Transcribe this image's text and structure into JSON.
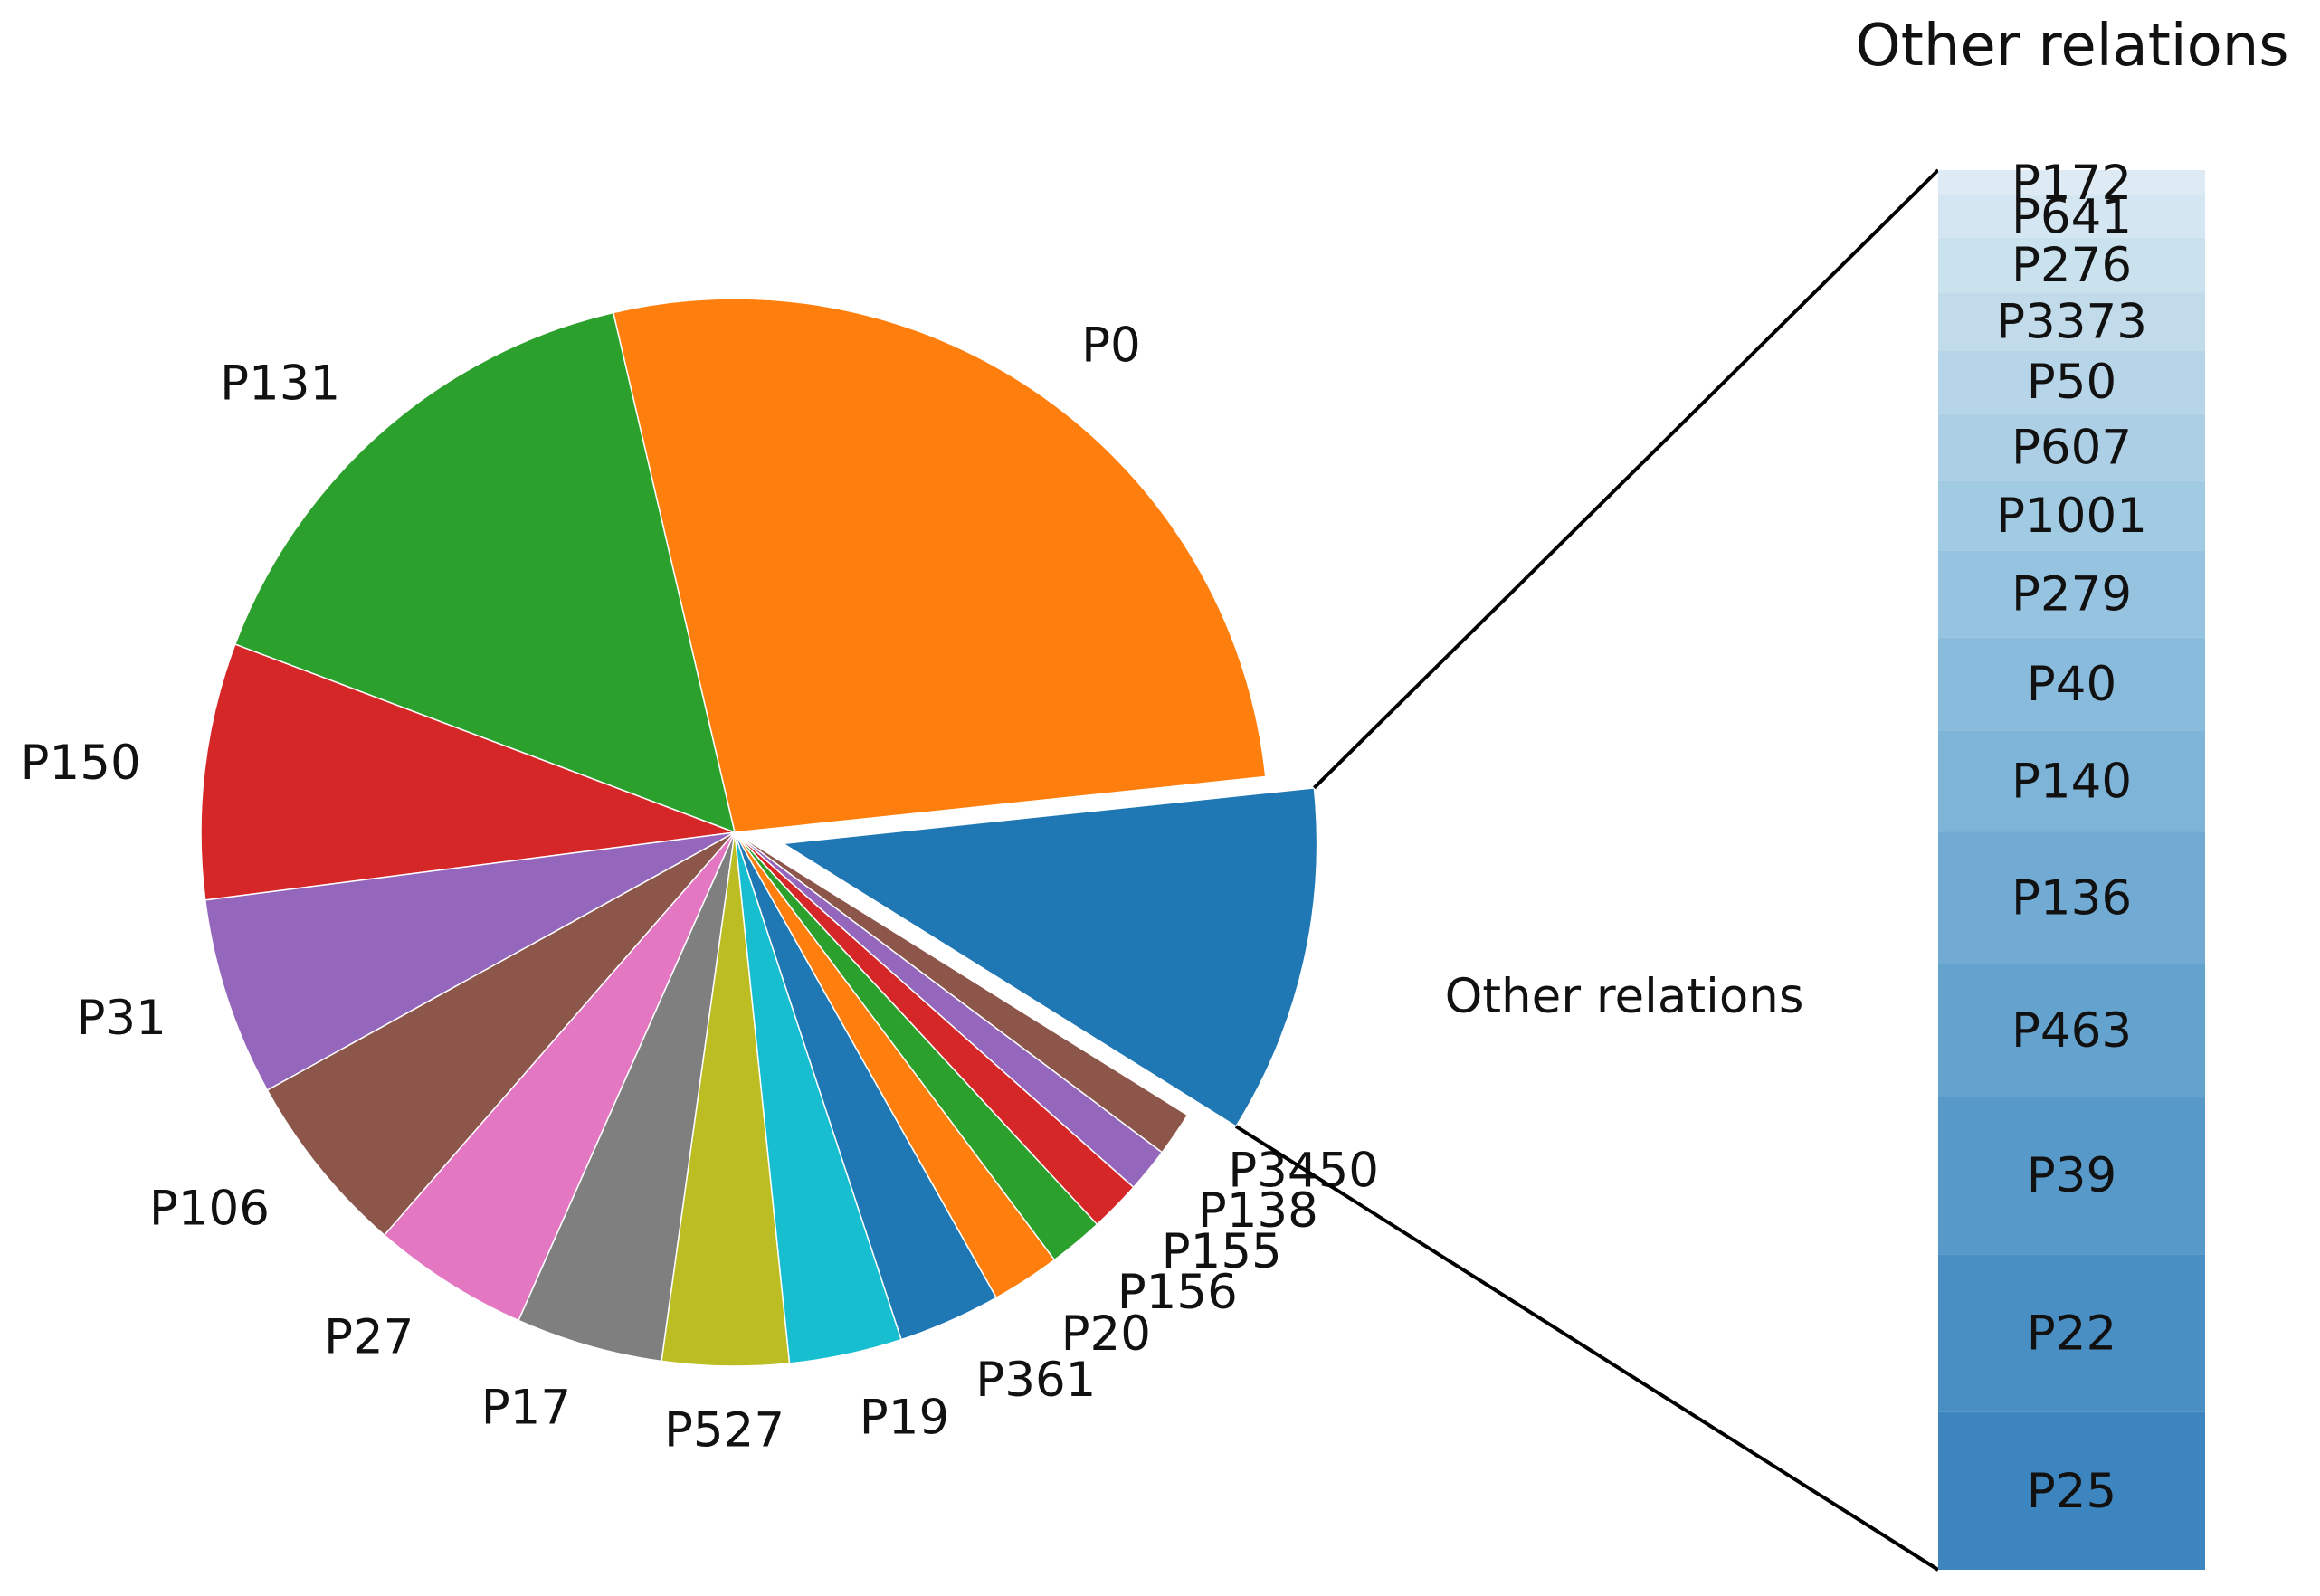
{
  "chart_data": [
    {
      "type": "pie",
      "title": "",
      "slices": [
        {
          "label": "Other relations",
          "value": 10.2,
          "color": "#1f77b4",
          "exploded": true
        },
        {
          "label": "P0",
          "value": 26.1,
          "color": "#ff7f0e"
        },
        {
          "label": "P131",
          "value": 15.1,
          "color": "#2ca02c"
        },
        {
          "label": "P150",
          "value": 7.5,
          "color": "#d62728"
        },
        {
          "label": "P31",
          "value": 5.8,
          "color": "#9467bd"
        },
        {
          "label": "P106",
          "value": 5.4,
          "color": "#8c564b"
        },
        {
          "label": "P27",
          "value": 4.6,
          "color": "#e377c2"
        },
        {
          "label": "P17",
          "value": 4.3,
          "color": "#7f7f7f"
        },
        {
          "label": "P527",
          "value": 3.7,
          "color": "#bcbd22"
        },
        {
          "label": "P19",
          "value": 3.3,
          "color": "#17becf"
        },
        {
          "label": "P361",
          "value": 3.0,
          "color": "#1f77b4"
        },
        {
          "label": "P20",
          "value": 2.0,
          "color": "#ff7f0e"
        },
        {
          "label": "P156",
          "value": 1.6,
          "color": "#2ca02c"
        },
        {
          "label": "P155",
          "value": 1.5,
          "color": "#d62728"
        },
        {
          "label": "P138",
          "value": 1.3,
          "color": "#9467bd"
        },
        {
          "label": "P3450",
          "value": 1.3,
          "color": "#8c564b"
        }
      ]
    },
    {
      "type": "bar",
      "orientation": "stacked-vertical",
      "title": "Other relations",
      "breakdown_of": "Other relations",
      "segments": [
        {
          "label": "P25",
          "value": 11.2,
          "color": "#3d85be"
        },
        {
          "label": "P22",
          "value": 11.2,
          "color": "#4a8fc4"
        },
        {
          "label": "P39",
          "value": 11.2,
          "color": "#579aca"
        },
        {
          "label": "P463",
          "value": 9.4,
          "color": "#65a3cf"
        },
        {
          "label": "P136",
          "value": 9.4,
          "color": "#71abd4"
        },
        {
          "label": "P140",
          "value": 7.2,
          "color": "#7db4d8"
        },
        {
          "label": "P40",
          "value": 6.6,
          "color": "#89bcdc"
        },
        {
          "label": "P279",
          "value": 6.2,
          "color": "#95c3e0"
        },
        {
          "label": "P1001",
          "value": 4.9,
          "color": "#a1cae3"
        },
        {
          "label": "P607",
          "value": 4.8,
          "color": "#accfe6"
        },
        {
          "label": "P50",
          "value": 4.5,
          "color": "#b7d5e9"
        },
        {
          "label": "P3373",
          "value": 4.1,
          "color": "#c1dbeb"
        },
        {
          "label": "P276",
          "value": 3.9,
          "color": "#cae1ee"
        },
        {
          "label": "P641",
          "value": 3.0,
          "color": "#d4e6f1"
        },
        {
          "label": "P172",
          "value": 1.8,
          "color": "#deebf5"
        }
      ]
    }
  ]
}
